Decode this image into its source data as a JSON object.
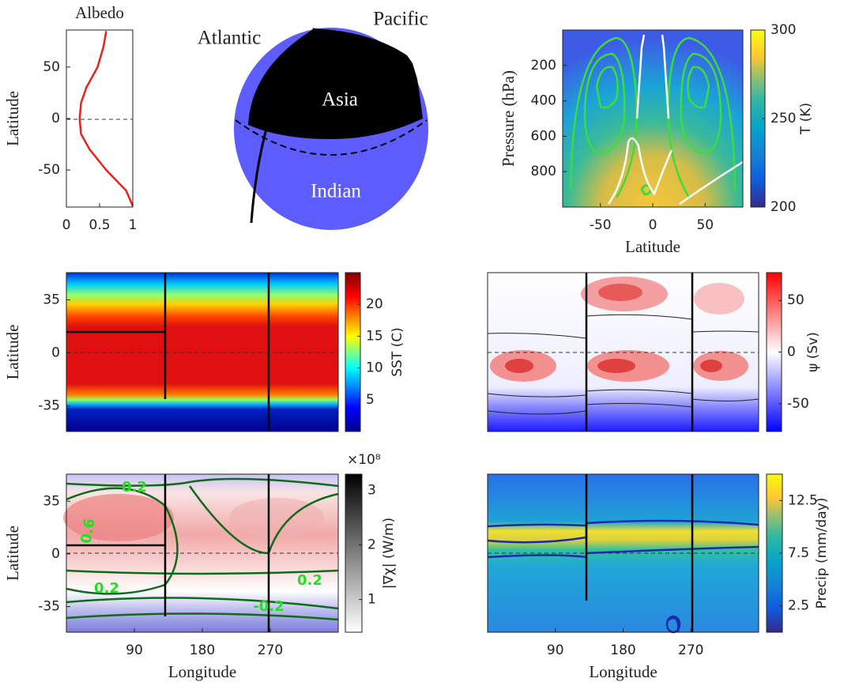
{
  "chart_data": [
    {
      "type": "line",
      "title": "Albedo",
      "ylabel": "Latitude",
      "color": "#e8221c",
      "latitudes": [
        -85,
        -70,
        -50,
        -30,
        -15,
        0,
        15,
        30,
        50,
        70,
        85
      ],
      "values": [
        1.0,
        0.9,
        0.6,
        0.35,
        0.22,
        0.2,
        0.22,
        0.3,
        0.47,
        0.56,
        0.6
      ],
      "xlim": [
        0,
        1
      ],
      "xticks": [
        0,
        0.5,
        1
      ],
      "ylim": [
        -86,
        86
      ],
      "yticks": [
        -50,
        0,
        50
      ]
    },
    {
      "type": "heatmap",
      "ylabel": "Pressure (hPa)",
      "xlabel": "Latitude",
      "colorbar_label": "T (K)",
      "xlim": [
        -86,
        86
      ],
      "xticks": [
        -50,
        0,
        50
      ],
      "ylim": [
        0,
        1000
      ],
      "y_reversed": true,
      "yticks": [
        200,
        400,
        600,
        800
      ],
      "clim": [
        200,
        300
      ],
      "cticks": [
        200,
        250,
        300
      ]
    },
    {
      "type": "heatmap",
      "ylabel": "Latitude",
      "colorbar_label": "SST (C)",
      "xlim": [
        0,
        360
      ],
      "ylim": [
        -52,
        53
      ],
      "yticks": [
        -35,
        0,
        35
      ],
      "clim": [
        0,
        25
      ],
      "cticks": [
        5,
        10,
        15,
        20
      ]
    },
    {
      "type": "heatmap",
      "colorbar_label": "ψ (Sv)",
      "xlim": [
        0,
        360
      ],
      "ylim": [
        -52,
        53
      ],
      "clim": [
        -77,
        77
      ],
      "cticks": [
        -50,
        0,
        50
      ]
    },
    {
      "type": "heatmap",
      "ylabel": "Latitude",
      "xlabel": "Longitude",
      "colorbar_label": "|∇χ| (W/m)",
      "colorbar_scale": "×10⁸",
      "xlim": [
        0,
        360
      ],
      "xticks": [
        90,
        180,
        270
      ],
      "ylim": [
        -52,
        53
      ],
      "yticks": [
        -35,
        0,
        35
      ],
      "clim": [
        0.4,
        3.3
      ],
      "cticks": [
        1,
        2,
        3
      ],
      "annotations": [
        "0.2",
        "0.6",
        "0.2",
        "0.2",
        "-0.2"
      ]
    },
    {
      "type": "heatmap",
      "xlabel": "Longitude",
      "colorbar_label": "Precip (mm/day)",
      "xlim": [
        0,
        360
      ],
      "xticks": [
        90,
        180,
        270
      ],
      "ylim": [
        -52,
        53
      ],
      "clim": [
        0,
        15
      ],
      "cticks": [
        2.5,
        7.5,
        12.5
      ]
    }
  ],
  "globe": {
    "labels": [
      "Atlantic",
      "Pacific",
      "Asia",
      "Indian"
    ]
  }
}
